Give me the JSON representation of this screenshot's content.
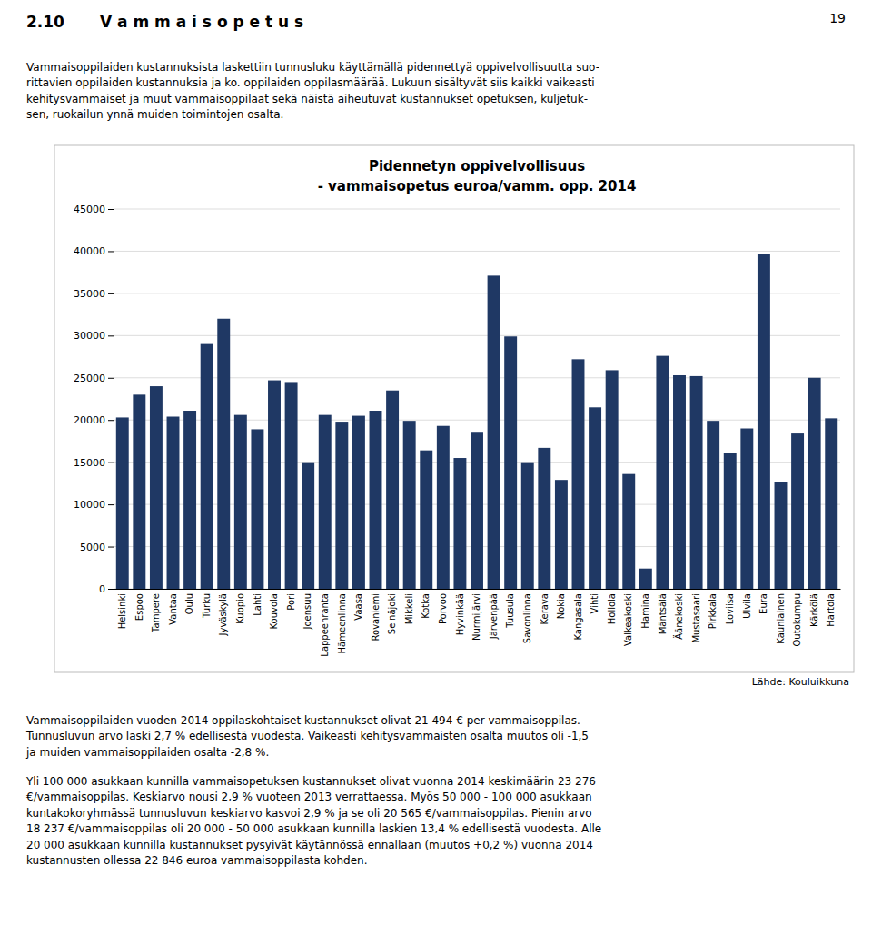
{
  "header_number": "19",
  "header_section": "2.10",
  "header_title": "V a m m a i s o p e t u s",
  "intro_text": "Vammaisoppilaiden kustannuksista laskettiin tunnusluku käyttämällä pidennettyä oppivelvollisuutta suo-\nrittavien oppilaiden kustannuksia ja ko. oppilaiden oppilasmäärää. Lukuun sisältyvät siis kaikki vaikeasti\nkehitysvammaiset ja muut vammaisoppilaat sekä näistä aiheutuvat kustannukset opetuksen, kuljetuk-\nsen, ruokailun ynnä muiden toimintojen osalta.",
  "footer_text1": "Vammaisoppilaiden vuoden 2014 oppilaskohtaiset kustannukset olivat 21 494 € per vammaisoppilas.\nTunnusluvun arvo laski 2,7 % edellisestä vuodesta. Vaikeasti kehitysvammaisten osalta muutos oli -1,5\nja muiden vammaisoppilaiden osalta -2,8 %.",
  "footer_text2": "Yli 100 000 asukkaan kunnilla vammaisopetuksen kustannukset olivat vuonna 2014 keskimäärin 23 276\n€/vammaisoppilas. Keskiarvo nousi 2,9 % vuoteen 2013 verrattaessa. Myös 50 000 - 100 000 asukkaan\nkuntakokoryhmässä tunnusluvun keskiarvo kasvoi 2,9 % ja se oli 20 565 €/vammaisoppilas. Pienin arvo\n18 237 €/vammaisoppilas oli 20 000 - 50 000 asukkaan kunnilla laskien 13,4 % edellisestä vuodesta. Alle\n20 000 asukkaan kunnilla kustannukset pysyivät käytännössä ennallaan (muutos +0,2 %) vuonna 2014\nkustannusten ollessa 22 846 euroa vammaisoppilasta kohden.",
  "chart_data": {
    "type": "bar",
    "title": "Pidennetyn oppivelvollisuus",
    "subtitle": "- vammaisopetus euroa/vamm. opp. 2014",
    "categories": [
      "Helsinki",
      "Espoo",
      "Tampere",
      "Vantaa",
      "Oulu",
      "Turku",
      "Jyväskylä",
      "Kuopio",
      "Lahti",
      "Kouvola",
      "Pori",
      "Joensuu",
      "Lappeenranta",
      "Hämeenlinna",
      "Vaasa",
      "Rovaniemi",
      "Seinäjoki",
      "Mikkeli",
      "Kotka",
      "Porvoo",
      "Hyvinkää",
      "Nurmijärvi",
      "Järvenpää",
      "Tuusula",
      "Savonlinna",
      "Kerava",
      "Nokia",
      "Kangasala",
      "Vihti",
      "Hollola",
      "Valkeakoski",
      "Hamina",
      "Mäntsälä",
      "Äänekoski",
      "Mustasaari",
      "Pirkkala",
      "Loviisa",
      "Ulvila",
      "Eura",
      "Kauniainen",
      "Outokumpu",
      "Kärkölä",
      "Hartola"
    ],
    "values": [
      20300,
      23000,
      24000,
      20400,
      21100,
      29000,
      32000,
      20600,
      18900,
      24700,
      24500,
      15000,
      20600,
      19800,
      20500,
      21100,
      23500,
      19900,
      16400,
      19300,
      15500,
      18600,
      37100,
      29900,
      15000,
      16700,
      12900,
      27200,
      21500,
      25900,
      13600,
      2400,
      27600,
      25300,
      25200,
      19900,
      16100,
      19000,
      39700,
      12600,
      18400,
      25000,
      20200
    ],
    "color": "#1F3864",
    "ylim": [
      0,
      45000
    ],
    "yticks": [
      0,
      5000,
      10000,
      15000,
      20000,
      25000,
      30000,
      35000,
      40000,
      45000
    ],
    "grid": true,
    "annotations": [
      "Lähde: Kouluikkuna"
    ]
  }
}
